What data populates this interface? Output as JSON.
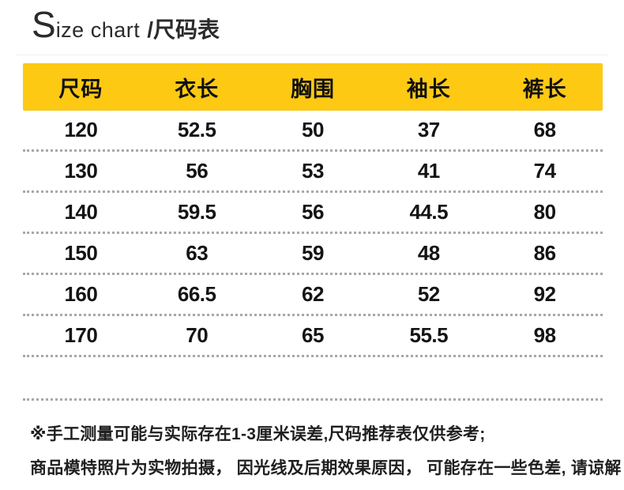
{
  "title": {
    "initial": "S",
    "english": "ize chart",
    "chinese": "/尺码表"
  },
  "chart_data": {
    "type": "table",
    "title": "Size chart /尺码表",
    "columns": [
      "尺码",
      "衣长",
      "胸围",
      "袖长",
      "裤长"
    ],
    "rows": [
      [
        120,
        52.5,
        50,
        37,
        68
      ],
      [
        130,
        56,
        53,
        41,
        74
      ],
      [
        140,
        59.5,
        56,
        44.5,
        80
      ],
      [
        150,
        63,
        59,
        48,
        86
      ],
      [
        160,
        66.5,
        62,
        52,
        92
      ],
      [
        170,
        70,
        65,
        55.5,
        98
      ]
    ],
    "notes": [
      "※手工测量可能与实际存在1-3厘米误差,尺码推荐表仅供参考;",
      "商品模特照片为实物拍摄， 因光线及后期效果原因， 可能存在一些色差, 请谅解"
    ]
  },
  "colors": {
    "header_bg": "#fdc913",
    "separator": "#a8a8a8",
    "title_text": "#2b2b2b",
    "body_text": "#141414",
    "note_text": "#1f1f1f",
    "top_rule": "#ededed"
  }
}
